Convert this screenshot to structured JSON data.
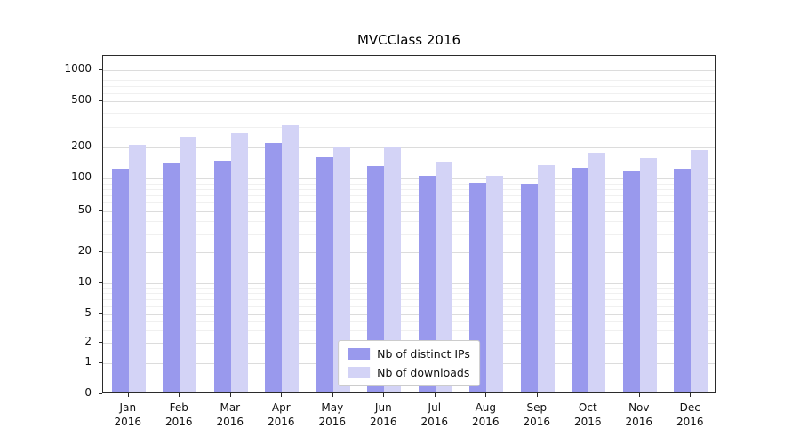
{
  "chart_data": {
    "type": "bar",
    "title": "MVCClass 2016",
    "categories": [
      "Jan 2016",
      "Feb 2016",
      "Mar 2016",
      "Apr 2016",
      "May 2016",
      "Jun 2016",
      "Jul 2016",
      "Aug 2016",
      "Sep 2016",
      "Oct 2016",
      "Nov 2016",
      "Dec 2016"
    ],
    "series": [
      {
        "name": "Nb of distinct IPs",
        "color": "#9999ed",
        "values": [
          120,
          135,
          142,
          210,
          155,
          128,
          103,
          88,
          86,
          121,
          112,
          120
        ]
      },
      {
        "name": "Nb of downloads",
        "color": "#d3d3f6",
        "values": [
          205,
          240,
          258,
          300,
          197,
          192,
          140,
          102,
          130,
          172,
          152,
          180
        ]
      }
    ],
    "yscale": "symlog",
    "yticks": [
      0,
      1,
      2,
      5,
      10,
      20,
      50,
      100,
      200,
      500,
      1000
    ],
    "ylim": [
      0,
      1500
    ],
    "grid": true,
    "legend_position": "lower center"
  }
}
